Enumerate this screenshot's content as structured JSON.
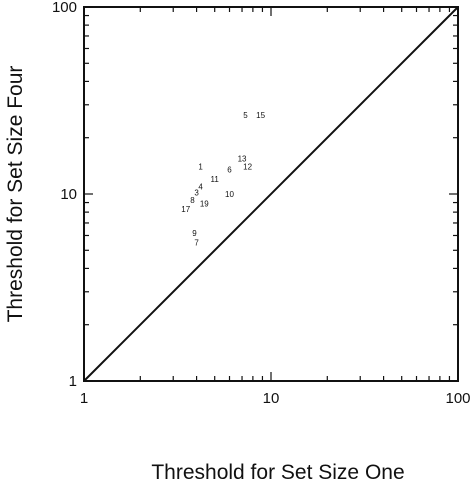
{
  "chart_data": {
    "type": "scatter",
    "xlabel": "Threshold for Set Size One",
    "ylabel": "Threshold for Set Size Four",
    "xscale": "log",
    "yscale": "log",
    "xlim": [
      1,
      100
    ],
    "ylim": [
      1,
      100
    ],
    "x_ticks": [
      "1",
      "10",
      "100"
    ],
    "y_ticks": [
      "1",
      "10",
      "100"
    ],
    "grid": false,
    "reference_line": "y = x",
    "points": [
      {
        "label": "5",
        "x": 7.3,
        "y": 26.5
      },
      {
        "label": "15",
        "x": 8.8,
        "y": 26.5
      },
      {
        "label": "1",
        "x": 4.2,
        "y": 14.0
      },
      {
        "label": "13",
        "x": 7.0,
        "y": 15.5
      },
      {
        "label": "12",
        "x": 7.5,
        "y": 14.0
      },
      {
        "label": "6",
        "x": 6.0,
        "y": 13.5
      },
      {
        "label": "11",
        "x": 5.0,
        "y": 12.0
      },
      {
        "label": "4",
        "x": 4.2,
        "y": 11.0
      },
      {
        "label": "3",
        "x": 4.0,
        "y": 10.2
      },
      {
        "label": "10",
        "x": 6.0,
        "y": 10.0
      },
      {
        "label": "8",
        "x": 3.8,
        "y": 9.3
      },
      {
        "label": "19",
        "x": 4.4,
        "y": 8.9
      },
      {
        "label": "17",
        "x": 3.5,
        "y": 8.3
      },
      {
        "label": "9",
        "x": 3.9,
        "y": 6.2
      },
      {
        "label": "7",
        "x": 4.0,
        "y": 5.5
      }
    ]
  }
}
